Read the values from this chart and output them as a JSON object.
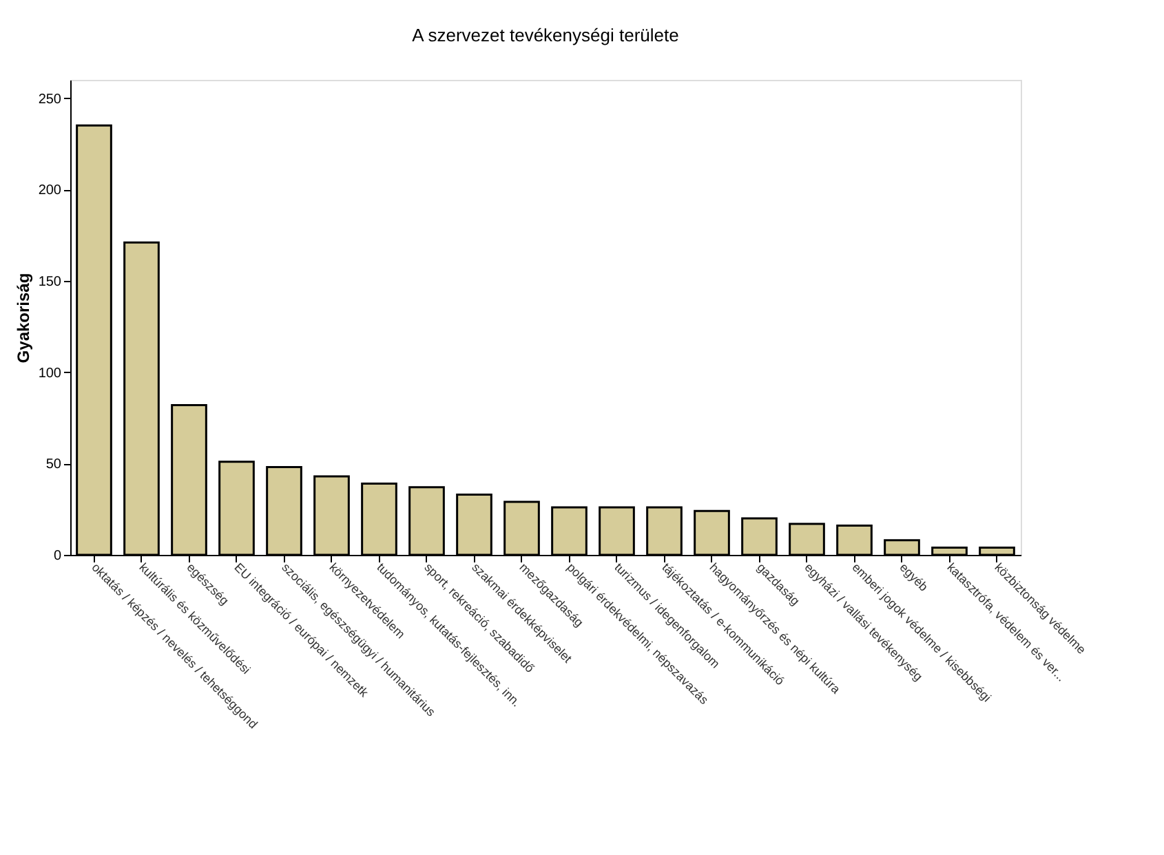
{
  "chart_data": {
    "type": "bar",
    "title": "A szervezet tevékenységi területe",
    "ylabel": "Gyakoriság",
    "categories": [
      "oktatás / képzés / nevelés / tehetséggond",
      "kultúrális és közművelődési",
      "egészség",
      "EU integráció / európai / nemzetk",
      "szociális, egészségügyi / humanitárius",
      "környezetvédelem",
      "tudományos, kutatás-fejlesztés, inn.",
      "sport, rekreáció, szabadidő",
      "szakmai érdekképviselet",
      "mezőgazdaság",
      "polgári érdekvédelmi, népszavazás",
      "turizmus / idegenforgalom",
      "tájékoztatás / e-kommunikáció",
      "hagyományőrzés és népi kultúra",
      "gazdaság",
      "egyházi / vallási tevékenység",
      "emberi jogok védelme / kisebbségi",
      "egyéb",
      "katasztrófa, védelem és ver...",
      "közbiztonság védelme"
    ],
    "values": [
      235,
      171,
      82,
      51,
      48,
      43,
      39,
      37,
      33,
      29,
      26,
      26,
      26,
      24,
      20,
      17,
      16,
      8,
      4,
      4
    ],
    "color": "#d6cc99",
    "ylim": [
      0,
      260
    ],
    "yticks": [
      0,
      50,
      100,
      150,
      200,
      250
    ],
    "grid": false
  }
}
